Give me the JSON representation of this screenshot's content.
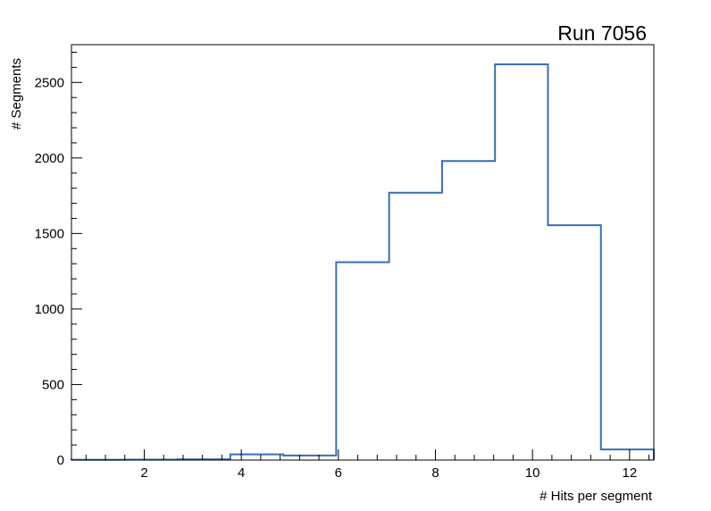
{
  "chart_data": {
    "type": "histogram-step",
    "title": "Run 7056",
    "xlabel": "# Hits per segment",
    "ylabel": "# Segments",
    "xlim": [
      0.5,
      12.5
    ],
    "ylim": [
      0,
      2750
    ],
    "bin_edges": [
      0.5,
      1.5909,
      2.6818,
      3.7727,
      4.8636,
      5.9545,
      7.0455,
      8.1364,
      9.2273,
      10.3182,
      11.4091,
      12.5
    ],
    "values": [
      2,
      3,
      5,
      38,
      30,
      1310,
      1770,
      1980,
      2620,
      1555,
      70
    ],
    "x_major_ticks": [
      2,
      4,
      6,
      8,
      10,
      12
    ],
    "x_minor_step": 0.4,
    "y_major_ticks": [
      0,
      500,
      1000,
      1500,
      2000,
      2500
    ],
    "y_minor_step": 100,
    "line_color": "#3a6db5",
    "axis_color": "#000000",
    "background": "#ffffff",
    "grid": false,
    "legend": null
  }
}
